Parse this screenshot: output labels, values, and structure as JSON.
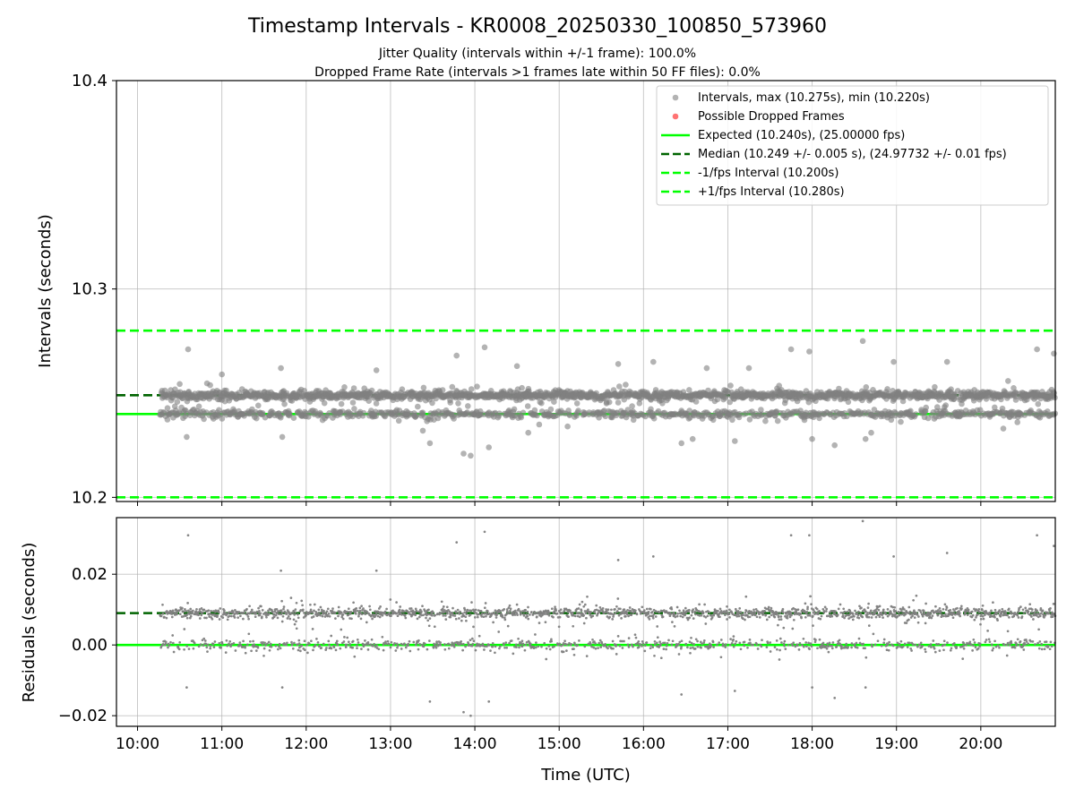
{
  "figure": {
    "title": "Timestamp Intervals - KR0008_20250330_100850_573960",
    "subtitle_jitter": "Jitter Quality (intervals within +/-1 frame): 100.0%",
    "subtitle_dropped": "Dropped Frame Rate (intervals >1 frames late within 50 FF files): 0.0%",
    "xlabel": "Time (UTC)"
  },
  "colors": {
    "intervals": "#808080",
    "dropped": "#ff0000",
    "expected": "#00ff00",
    "median": "#006400",
    "fps_bound": "#00ff00",
    "grid": "#b0b0b0"
  },
  "chart_data": [
    {
      "type": "scatter",
      "panel": "intervals",
      "ylabel": "Intervals (seconds)",
      "ylim": [
        10.198,
        10.4
      ],
      "yticks": [
        "10.2",
        "10.3",
        "10.4"
      ],
      "ytick_values": [
        10.2,
        10.3,
        10.4
      ],
      "xlim": [
        "09:45",
        "20:53"
      ],
      "xticks": [
        "10:00",
        "11:00",
        "12:00",
        "13:00",
        "14:00",
        "15:00",
        "16:00",
        "17:00",
        "18:00",
        "19:00",
        "20:00"
      ],
      "grid": true,
      "legend_placement": "top-right",
      "legend": [
        "Intervals, max (10.275s), min (10.220s)",
        "Possible Dropped Frames",
        "Expected (10.240s), (25.00000 fps)",
        "Median (10.249 +/- 0.005 s), (24.97732 +/- 0.01 fps)",
        "-1/fps Interval (10.200s)",
        "+1/fps Interval (10.280s)"
      ],
      "reference_lines": [
        {
          "name": "Expected",
          "y": 10.24,
          "style": "solid"
        },
        {
          "name": "Median",
          "y": 10.249,
          "style": "dashed"
        },
        {
          "name": "-1/fps Interval",
          "y": 10.2,
          "style": "dashed"
        },
        {
          "name": "+1/fps Interval",
          "y": 10.28,
          "style": "dashed"
        }
      ],
      "series": [
        {
          "name": "Intervals",
          "x_range": [
            "10:16",
            "20:53"
          ],
          "mode_values": [
            10.249,
            10.24
          ],
          "max": 10.275,
          "min": 10.22,
          "outliers": [
            {
              "x": "10:36",
              "y": 10.271
            },
            {
              "x": "10:35",
              "y": 10.229
            },
            {
              "x": "11:00",
              "y": 10.259
            },
            {
              "x": "11:42",
              "y": 10.262
            },
            {
              "x": "11:43",
              "y": 10.229
            },
            {
              "x": "12:50",
              "y": 10.261
            },
            {
              "x": "13:23",
              "y": 10.232
            },
            {
              "x": "13:28",
              "y": 10.226
            },
            {
              "x": "13:47",
              "y": 10.268
            },
            {
              "x": "13:52",
              "y": 10.221
            },
            {
              "x": "13:57",
              "y": 10.22
            },
            {
              "x": "14:07",
              "y": 10.272
            },
            {
              "x": "14:10",
              "y": 10.224
            },
            {
              "x": "14:30",
              "y": 10.263
            },
            {
              "x": "14:38",
              "y": 10.231
            },
            {
              "x": "15:06",
              "y": 10.234
            },
            {
              "x": "15:42",
              "y": 10.264
            },
            {
              "x": "16:07",
              "y": 10.265
            },
            {
              "x": "16:27",
              "y": 10.226
            },
            {
              "x": "16:35",
              "y": 10.228
            },
            {
              "x": "16:45",
              "y": 10.262
            },
            {
              "x": "17:05",
              "y": 10.227
            },
            {
              "x": "17:15",
              "y": 10.262
            },
            {
              "x": "17:45",
              "y": 10.271
            },
            {
              "x": "17:58",
              "y": 10.27
            },
            {
              "x": "18:00",
              "y": 10.228
            },
            {
              "x": "18:16",
              "y": 10.225
            },
            {
              "x": "18:36",
              "y": 10.275
            },
            {
              "x": "18:38",
              "y": 10.228
            },
            {
              "x": "18:42",
              "y": 10.231
            },
            {
              "x": "18:58",
              "y": 10.265
            },
            {
              "x": "19:36",
              "y": 10.265
            },
            {
              "x": "20:16",
              "y": 10.233
            },
            {
              "x": "20:40",
              "y": 10.271
            },
            {
              "x": "20:52",
              "y": 10.269
            }
          ]
        }
      ]
    },
    {
      "type": "scatter",
      "panel": "residuals",
      "ylabel": "Residuals (seconds)",
      "ylim": [
        -0.023,
        0.036
      ],
      "yticks": [
        "0.02",
        "0.00",
        "−0.02"
      ],
      "ytick_values": [
        0.02,
        0.0,
        -0.02
      ],
      "xlim": [
        "09:45",
        "20:53"
      ],
      "xticks": [
        "10:00",
        "11:00",
        "12:00",
        "13:00",
        "14:00",
        "15:00",
        "16:00",
        "17:00",
        "18:00",
        "19:00",
        "20:00"
      ],
      "grid": true,
      "reference_lines": [
        {
          "name": "Zero",
          "y": 0.0,
          "style": "solid"
        },
        {
          "name": "Median residual",
          "y": 0.009,
          "style": "dashed"
        }
      ],
      "series": [
        {
          "name": "Residuals",
          "x_range": [
            "10:16",
            "20:53"
          ],
          "mode_values": [
            0.009,
            0.0
          ],
          "max": 0.035,
          "min": -0.02,
          "outliers": [
            {
              "x": "10:36",
              "y": 0.031
            },
            {
              "x": "10:35",
              "y": -0.012
            },
            {
              "x": "11:42",
              "y": 0.021
            },
            {
              "x": "11:43",
              "y": -0.012
            },
            {
              "x": "12:50",
              "y": 0.021
            },
            {
              "x": "13:28",
              "y": -0.016
            },
            {
              "x": "13:47",
              "y": 0.029
            },
            {
              "x": "13:52",
              "y": -0.019
            },
            {
              "x": "13:57",
              "y": -0.02
            },
            {
              "x": "14:07",
              "y": 0.032
            },
            {
              "x": "14:10",
              "y": -0.016
            },
            {
              "x": "15:42",
              "y": 0.024
            },
            {
              "x": "16:07",
              "y": 0.025
            },
            {
              "x": "16:27",
              "y": -0.014
            },
            {
              "x": "17:05",
              "y": -0.013
            },
            {
              "x": "17:45",
              "y": 0.031
            },
            {
              "x": "17:58",
              "y": 0.031
            },
            {
              "x": "18:00",
              "y": -0.012
            },
            {
              "x": "18:16",
              "y": -0.015
            },
            {
              "x": "18:36",
              "y": 0.035
            },
            {
              "x": "18:38",
              "y": -0.012
            },
            {
              "x": "18:58",
              "y": 0.025
            },
            {
              "x": "19:36",
              "y": 0.026
            },
            {
              "x": "20:40",
              "y": 0.031
            },
            {
              "x": "20:52",
              "y": 0.028
            }
          ]
        }
      ]
    }
  ]
}
